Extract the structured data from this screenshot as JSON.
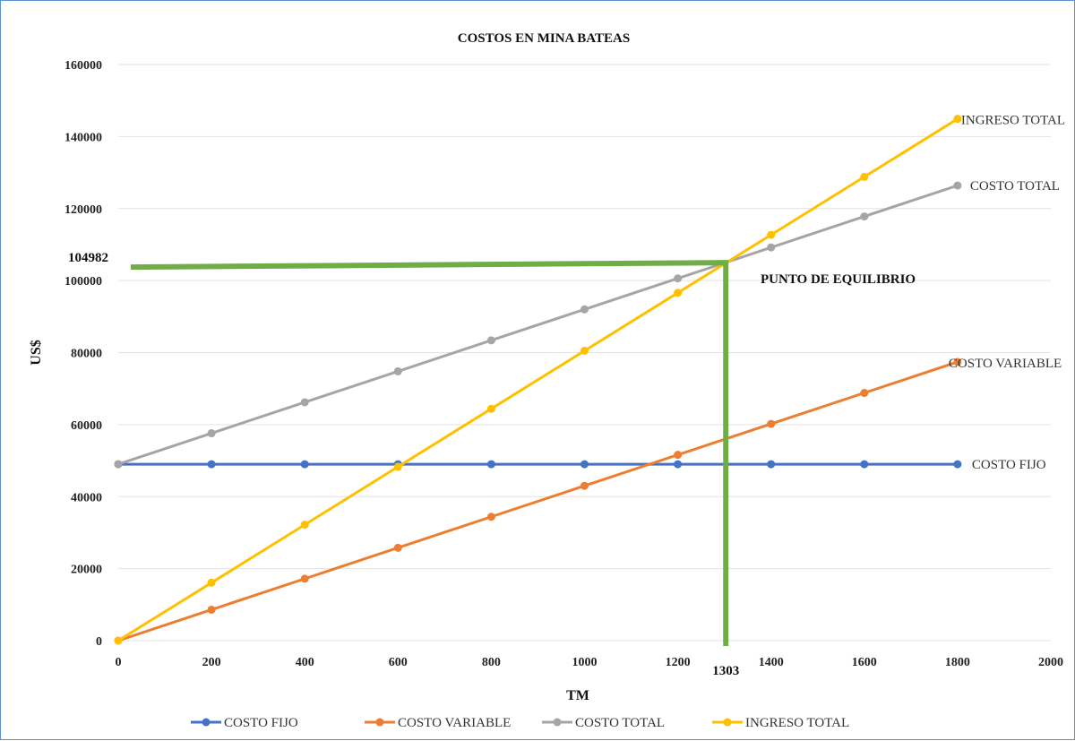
{
  "chart_data": {
    "type": "line",
    "title": "COSTOS EN MINA BATEAS",
    "xlabel": "TM",
    "ylabel": "US$",
    "xlim": [
      0,
      2000
    ],
    "ylim": [
      0,
      160000
    ],
    "x_ticks": [
      0,
      200,
      400,
      600,
      800,
      1000,
      1200,
      1400,
      1600,
      1800,
      2000
    ],
    "y_ticks": [
      0,
      20000,
      40000,
      60000,
      80000,
      100000,
      120000,
      140000,
      160000
    ],
    "grid": true,
    "legend": "bottom",
    "x": [
      0,
      200,
      400,
      600,
      800,
      1000,
      1200,
      1400,
      1600,
      1800
    ],
    "series": [
      {
        "name": "COSTO FIJO",
        "color": "#4472c4",
        "values": [
          49000,
          49000,
          49000,
          49000,
          49000,
          49000,
          49000,
          49000,
          49000,
          49000
        ]
      },
      {
        "name": "COSTO VARIABLE",
        "color": "#ed7d31",
        "values": [
          0,
          8600,
          17200,
          25800,
          34400,
          43000,
          51600,
          60200,
          68800,
          77400
        ]
      },
      {
        "name": "COSTO TOTAL",
        "color": "#a5a5a5",
        "values": [
          49000,
          57600,
          66200,
          74800,
          83400,
          92000,
          100600,
          109200,
          117800,
          126400
        ]
      },
      {
        "name": "INGRESO TOTAL",
        "color": "#ffc000",
        "values": [
          0,
          16100,
          32200,
          48300,
          64400,
          80500,
          96600,
          112700,
          128800,
          144900
        ]
      }
    ],
    "series_labels": [
      "INGRESO TOTAL",
      "COSTO TOTAL",
      "COSTO VARIABLE",
      "COSTO FIJO"
    ],
    "annotations": {
      "break_even_label": "PUNTO DE EQUILIBRIO",
      "break_even_x": 1303,
      "break_even_y": 104982,
      "break_even_x_label": "1303",
      "break_even_y_label": "104982",
      "guide_color": "#70ad47"
    }
  }
}
